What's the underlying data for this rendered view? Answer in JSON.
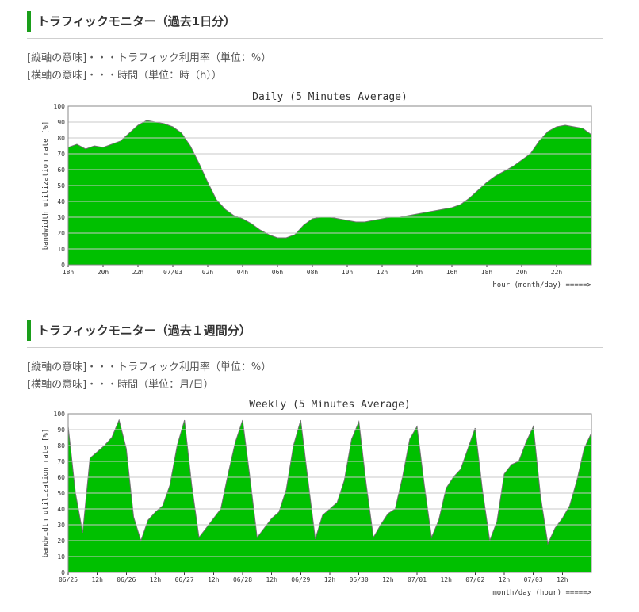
{
  "sections": [
    {
      "heading": "トラフィックモニター（過去1日分）",
      "desc_vertical": "[縦軸の意味]・・・トラフィック利用率（単位：%）",
      "desc_horizontal": "[横軸の意味]・・・時間（単位：時（h））"
    },
    {
      "heading": "トラフィックモニター（過去１週間分）",
      "desc_vertical": "[縦軸の意味]・・・トラフィック利用率（単位：%）",
      "desc_horizontal": "[横軸の意味]・・・時間（単位：月/日）"
    }
  ],
  "colors": {
    "area": "#00c000",
    "peak": "#707070",
    "grid": "#c8c8c8",
    "accent": "#1a9e1a"
  },
  "chart_data": [
    {
      "type": "area",
      "title": "Daily (5 Minutes Average)",
      "ylabel": "bandwidth utilization rate [%]",
      "xlabel": "hour (month/day) =====>",
      "ylim": [
        0,
        100
      ],
      "yticks": [
        0,
        10,
        20,
        30,
        40,
        50,
        60,
        70,
        80,
        90,
        100
      ],
      "grid": true,
      "xtick_labels": [
        "18h",
        "20h",
        "22h",
        "07/03",
        "02h",
        "04h",
        "06h",
        "08h",
        "10h",
        "12h",
        "14h",
        "16h",
        "18h",
        "20h",
        "22h"
      ],
      "xticks": [
        0,
        2,
        4,
        6,
        8,
        10,
        12,
        14,
        16,
        18,
        20,
        22,
        24,
        26,
        28
      ],
      "xlim": [
        0,
        30
      ],
      "x": [
        0,
        0.5,
        1,
        1.5,
        2,
        2.5,
        3,
        3.5,
        4,
        4.5,
        5,
        5.5,
        6,
        6.5,
        7,
        7.5,
        8,
        8.5,
        9,
        9.5,
        10,
        10.5,
        11,
        11.5,
        12,
        12.5,
        13,
        13.5,
        14,
        14.5,
        15,
        15.5,
        16,
        16.5,
        17,
        17.5,
        18,
        18.5,
        19,
        19.5,
        20,
        20.5,
        21,
        21.5,
        22,
        22.5,
        23,
        23.5,
        24,
        24.5,
        25,
        25.5,
        26,
        26.5,
        27,
        27.5,
        28,
        28.5,
        29,
        29.5,
        30
      ],
      "values": [
        74,
        76,
        73,
        75,
        74,
        76,
        78,
        83,
        88,
        91,
        90,
        89,
        87,
        83,
        75,
        64,
        52,
        41,
        35,
        31,
        29,
        26,
        22,
        19,
        17,
        17,
        19,
        25,
        29,
        30,
        30,
        29,
        28,
        27,
        27,
        28,
        29,
        30,
        30,
        31,
        32,
        33,
        34,
        35,
        36,
        38,
        42,
        47,
        52,
        56,
        59,
        62,
        66,
        70,
        78,
        84,
        87,
        88,
        87,
        86,
        82
      ]
    },
    {
      "type": "area",
      "title": "Weekly (5 Minutes Average)",
      "ylabel": "bandwidth utilization rate [%]",
      "xlabel": "month/day (hour) =====>",
      "ylim": [
        0,
        100
      ],
      "yticks": [
        0,
        10,
        20,
        30,
        40,
        50,
        60,
        70,
        80,
        90,
        100
      ],
      "grid": true,
      "xtick_labels": [
        "06/25",
        "12h",
        "06/26",
        "12h",
        "06/27",
        "12h",
        "06/28",
        "12h",
        "06/29",
        "12h",
        "06/30",
        "12h",
        "07/01",
        "12h",
        "07/02",
        "12h",
        "07/03",
        "12h"
      ],
      "xticks": [
        0,
        12,
        24,
        36,
        48,
        60,
        72,
        84,
        96,
        108,
        120,
        132,
        144,
        156,
        168,
        180,
        192,
        204
      ],
      "xlim": [
        0,
        216
      ],
      "x": [
        0,
        3,
        6,
        9,
        12,
        15,
        18,
        21,
        24,
        27,
        30,
        33,
        36,
        39,
        42,
        45,
        48,
        51,
        54,
        57,
        60,
        63,
        66,
        69,
        72,
        75,
        78,
        81,
        84,
        87,
        90,
        93,
        96,
        99,
        102,
        105,
        108,
        111,
        114,
        117,
        120,
        123,
        126,
        129,
        132,
        135,
        138,
        141,
        144,
        147,
        150,
        153,
        156,
        159,
        162,
        165,
        168,
        171,
        174,
        177,
        180,
        183,
        186,
        189,
        192,
        195,
        198,
        201,
        204,
        207,
        210,
        213,
        216
      ],
      "values": [
        92,
        50,
        25,
        72,
        76,
        80,
        85,
        96,
        78,
        35,
        20,
        33,
        38,
        42,
        55,
        80,
        96,
        55,
        22,
        28,
        34,
        40,
        62,
        82,
        96,
        60,
        22,
        28,
        34,
        38,
        52,
        80,
        96,
        58,
        21,
        36,
        40,
        44,
        58,
        84,
        95,
        56,
        22,
        30,
        37,
        40,
        60,
        84,
        92,
        55,
        22,
        33,
        53,
        60,
        65,
        78,
        91,
        52,
        20,
        32,
        62,
        68,
        70,
        82,
        92,
        48,
        18,
        28,
        34,
        42,
        58,
        78,
        88
      ]
    }
  ]
}
